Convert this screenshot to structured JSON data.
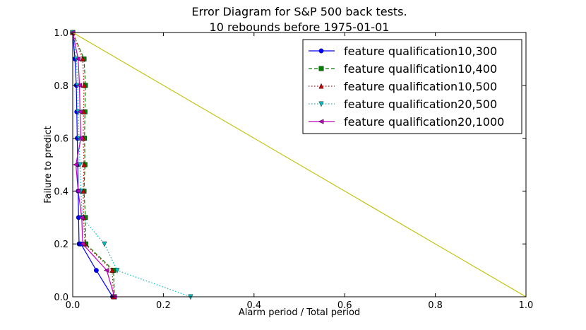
{
  "chart_data": {
    "type": "line",
    "title": "Error Diagram for S&P 500 back tests.",
    "subtitle": "10 rebounds before 1975-01-01",
    "xlabel": "Alarm period / Total period",
    "ylabel": "Failure to predict",
    "xlim": [
      0.0,
      1.0
    ],
    "ylim": [
      0.0,
      1.0
    ],
    "xticks": [
      "0.0",
      "0.2",
      "0.4",
      "0.6",
      "0.8",
      "1.0"
    ],
    "yticks": [
      "0.0",
      "0.2",
      "0.4",
      "0.6",
      "0.8",
      "1.0"
    ],
    "grid": false,
    "legend_position": "top-right",
    "series": [
      {
        "name": "feature qualification10,300",
        "color": "#0000ff",
        "style": "solid",
        "marker": "circle",
        "x": [
          0.0,
          0.005,
          0.008,
          0.009,
          0.01,
          0.011,
          0.012,
          0.013,
          0.014,
          0.016,
          0.018,
          0.052,
          0.088
        ],
        "y": [
          1.0,
          0.9,
          0.8,
          0.7,
          0.6,
          0.5,
          0.4,
          0.3,
          0.2,
          0.2,
          0.2,
          0.1,
          0.0
        ]
      },
      {
        "name": "feature qualification10,400",
        "color": "#008000",
        "style": "dashed",
        "marker": "square",
        "x": [
          0.0,
          0.025,
          0.028,
          0.027,
          0.026,
          0.027,
          0.025,
          0.028,
          0.029,
          0.09,
          0.092
        ],
        "y": [
          1.0,
          0.9,
          0.8,
          0.7,
          0.6,
          0.5,
          0.4,
          0.3,
          0.2,
          0.1,
          0.0
        ]
      },
      {
        "name": "feature qualification10,500",
        "color": "#cc0000",
        "style": "dotted",
        "marker": "triangle-up",
        "x": [
          0.0,
          0.022,
          0.025,
          0.024,
          0.023,
          0.025,
          0.023,
          0.024,
          0.027,
          0.087,
          0.09
        ],
        "y": [
          1.0,
          0.9,
          0.8,
          0.7,
          0.6,
          0.5,
          0.4,
          0.3,
          0.2,
          0.1,
          0.0
        ]
      },
      {
        "name": "feature qualification20,500",
        "color": "#00bfbf",
        "style": "dotted",
        "marker": "triangle-down",
        "x": [
          0.0,
          0.008,
          0.011,
          0.012,
          0.014,
          0.016,
          0.018,
          0.021,
          0.07,
          0.098,
          0.26
        ],
        "y": [
          1.0,
          0.9,
          0.8,
          0.7,
          0.6,
          0.5,
          0.4,
          0.3,
          0.2,
          0.1,
          0.0
        ]
      },
      {
        "name": "feature qualification20,1000",
        "color": "#bf00bf",
        "style": "solid",
        "marker": "triangle-left",
        "x": [
          0.0,
          0.012,
          0.015,
          0.016,
          0.018,
          0.007,
          0.012,
          0.02,
          0.022,
          0.075,
          0.092
        ],
        "y": [
          1.0,
          0.9,
          0.8,
          0.7,
          0.6,
          0.5,
          0.4,
          0.3,
          0.2,
          0.1,
          0.0
        ]
      },
      {
        "name": "",
        "color": "#bfbf00",
        "style": "solid",
        "marker": "none",
        "x": [
          0.0,
          1.0
        ],
        "y": [
          1.0,
          0.0
        ]
      }
    ]
  }
}
